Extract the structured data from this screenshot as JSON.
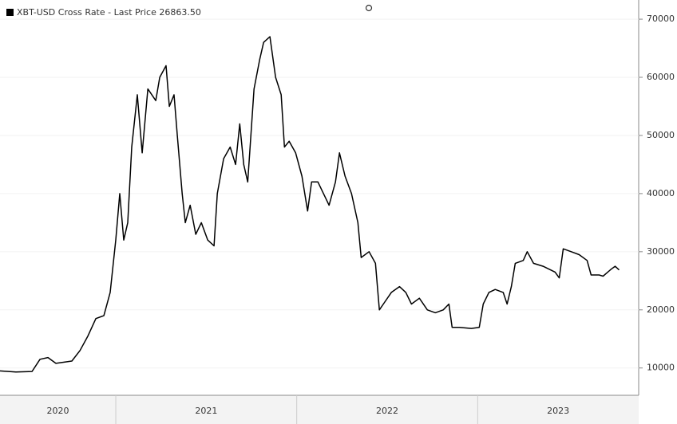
{
  "chart_data": {
    "type": "line",
    "title": "XBT-USD Cross Rate - Last Price 26863.50",
    "series": [
      {
        "name": "XBT-USD Cross Rate",
        "color": "#000000",
        "x": [
          2020.36,
          2020.448,
          2020.537,
          2020.581,
          2020.625,
          2020.669,
          2020.757,
          2020.802,
          2020.846,
          2020.89,
          2020.934,
          2020.969,
          2021.0,
          2021.022,
          2021.044,
          2021.066,
          2021.088,
          2021.119,
          2021.146,
          2021.177,
          2021.221,
          2021.243,
          2021.278,
          2021.296,
          2021.322,
          2021.34,
          2021.367,
          2021.384,
          2021.411,
          2021.442,
          2021.473,
          2021.508,
          2021.543,
          2021.561,
          2021.596,
          2021.632,
          2021.662,
          2021.685,
          2021.707,
          2021.729,
          2021.764,
          2021.795,
          2021.817,
          2021.852,
          2021.883,
          2021.914,
          2021.932,
          2021.958,
          2021.994,
          2022.029,
          2022.06,
          2022.082,
          2022.117,
          2022.148,
          2022.179,
          2022.214,
          2022.236,
          2022.267,
          2022.303,
          2022.338,
          2022.356,
          2022.4,
          2022.435,
          2022.457,
          2022.479,
          2022.523,
          2022.568,
          2022.603,
          2022.634,
          2022.678,
          2022.722,
          2022.766,
          2022.81,
          2022.841,
          2022.859,
          2022.899,
          2022.965,
          2023.009,
          2023.031,
          2023.062,
          2023.097,
          2023.141,
          2023.163,
          2023.186,
          2023.208,
          2023.252,
          2023.274,
          2023.309,
          2023.362,
          2023.428,
          2023.451,
          2023.473,
          2023.517,
          2023.561,
          2023.605,
          2023.627,
          2023.671,
          2023.693,
          2023.738,
          2023.76,
          2023.782
        ],
        "values": [
          9500,
          9300,
          9400,
          11500,
          11800,
          10800,
          11200,
          13000,
          15500,
          18500,
          19000,
          23000,
          32000,
          40000,
          32000,
          35000,
          48000,
          57000,
          47000,
          58000,
          56000,
          60000,
          62000,
          55000,
          57000,
          50000,
          40000,
          35000,
          38000,
          33000,
          35000,
          32000,
          31000,
          40000,
          46000,
          48000,
          45000,
          52000,
          45000,
          42000,
          58000,
          63000,
          66000,
          67000,
          60000,
          57000,
          48000,
          49000,
          47000,
          43000,
          37000,
          42000,
          42000,
          40000,
          38000,
          42000,
          47000,
          43000,
          40000,
          35000,
          29000,
          30000,
          28000,
          20000,
          21000,
          23000,
          24000,
          23000,
          21000,
          22000,
          20000,
          19500,
          20000,
          21000,
          17000,
          17000,
          16800,
          17000,
          21000,
          23000,
          23500,
          23000,
          21000,
          24000,
          28000,
          28500,
          30000,
          28000,
          27500,
          26500,
          25500,
          30500,
          30000,
          29500,
          28500,
          26000,
          26000,
          25800,
          27000,
          27500,
          26863.5
        ]
      }
    ],
    "xlim": [
      2020.36,
      2023.89
    ],
    "xticks": [
      2020,
      2021,
      2022,
      2023
    ],
    "ylim": [
      5300,
      73300
    ],
    "yticks": [
      10000,
      20000,
      30000,
      40000,
      50000,
      60000,
      70000
    ]
  }
}
